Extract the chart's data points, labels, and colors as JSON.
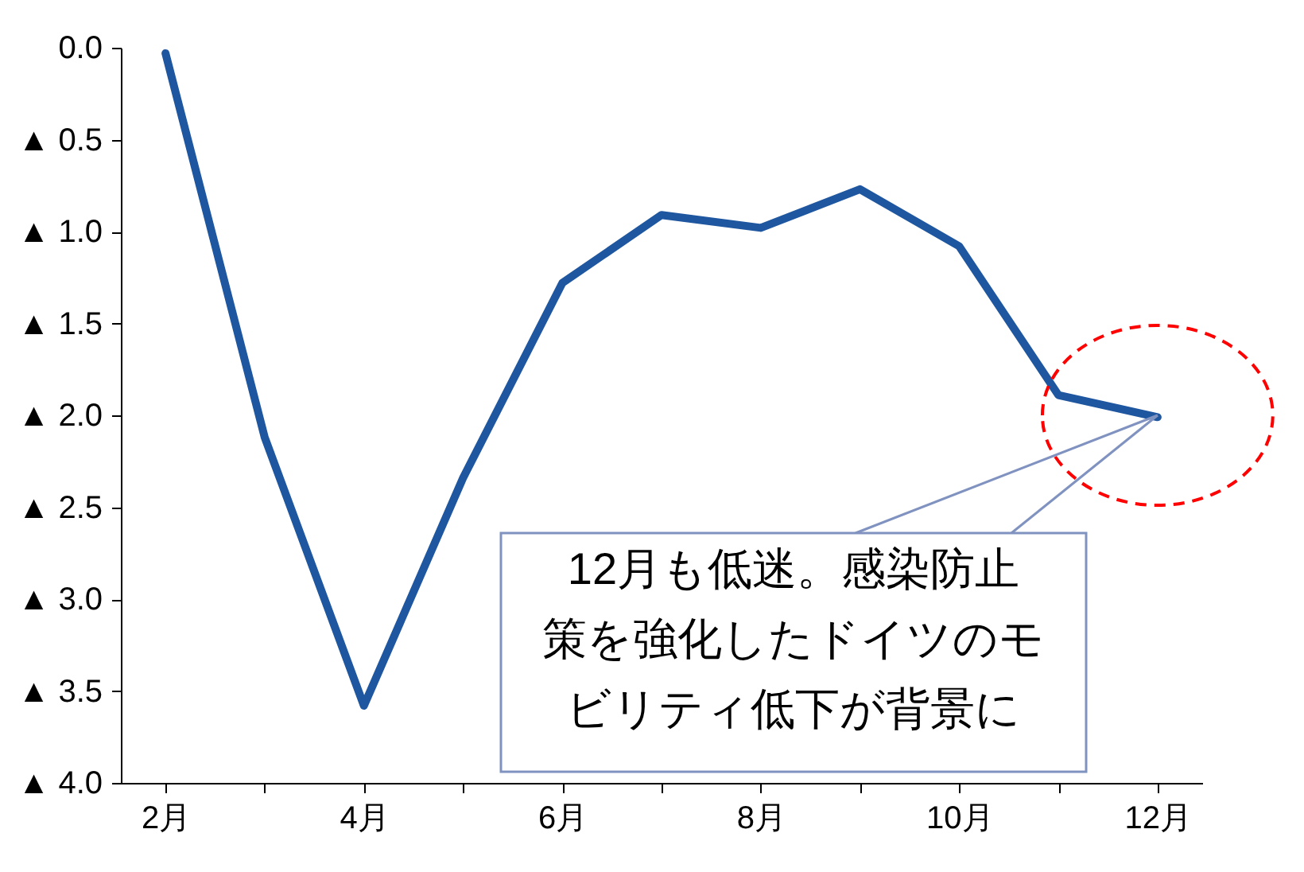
{
  "chart_data": {
    "type": "line",
    "categories": [
      "2月",
      null,
      "4月",
      null,
      "6月",
      null,
      "8月",
      null,
      "10月",
      null,
      "12月"
    ],
    "series": [
      {
        "color": "#1e56a0",
        "values": [
          -0.03,
          -2.12,
          -3.58,
          -2.34,
          -1.28,
          -0.91,
          -0.98,
          -0.77,
          -1.08,
          -1.89,
          -2.01
        ]
      }
    ],
    "ylim": [
      -4,
      0
    ],
    "yticks": [
      {
        "value": 0,
        "label": "0.0"
      },
      {
        "value": -0.5,
        "label": "▲ 0.5"
      },
      {
        "value": -1,
        "label": "▲ 1.0"
      },
      {
        "value": -1.5,
        "label": "▲ 1.5"
      },
      {
        "value": -2,
        "label": "▲ 2.0"
      },
      {
        "value": -2.5,
        "label": "▲ 2.5"
      },
      {
        "value": -3,
        "label": "▲ 3.0"
      },
      {
        "value": -3.5,
        "label": "▲ 3.5"
      },
      {
        "value": -4,
        "label": "▲ 4.0"
      }
    ],
    "annotations": [
      {
        "text": "12月も低迷。感染防止策を強化したドイツのモビリティ低下が背景に",
        "x": "12月",
        "y": -2.0
      }
    ],
    "grid": false,
    "legend": false,
    "marker": "none",
    "line_style": "solid"
  }
}
